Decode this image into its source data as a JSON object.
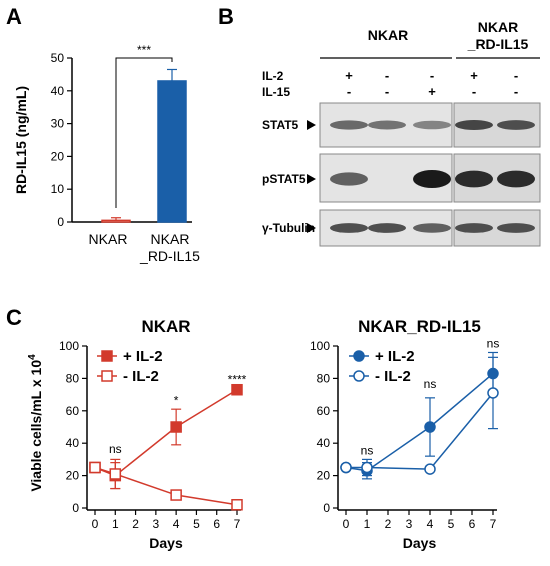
{
  "panels": {
    "a": {
      "letter": "A",
      "chart_data": {
        "type": "bar",
        "categories": [
          "NKAR",
          "NKAR\n_RD-IL15"
        ],
        "category_lines": [
          [
            "NKAR"
          ],
          [
            "NKAR",
            "_RD-IL15"
          ]
        ],
        "values": [
          0.5,
          43
        ],
        "errors": [
          0.8,
          3.5
        ],
        "ylabel": "RD-IL15  (ng/mL)",
        "ylim": [
          0,
          50
        ],
        "yticks": [
          0,
          10,
          20,
          30,
          40,
          50
        ],
        "significance": "***",
        "colors": {
          "bar2": "#1a5fa8",
          "bar1_edge": "#d23a2c"
        }
      }
    },
    "b": {
      "letter": "B",
      "groups": [
        {
          "label": "NKAR",
          "lanes": 3
        },
        {
          "label": "NKAR\n_RD-IL15",
          "lines": [
            "NKAR",
            "_RD-IL15"
          ],
          "lanes": 2
        }
      ],
      "conditions": [
        {
          "label": "IL-2",
          "values": [
            "+",
            "-",
            "-",
            "+",
            "-"
          ]
        },
        {
          "label": "IL-15",
          "values": [
            "-",
            "-",
            "+",
            "-",
            "-"
          ]
        }
      ],
      "blots": [
        {
          "label": "STAT5",
          "intensity": [
            0.55,
            0.5,
            0.4,
            0.75,
            0.7
          ]
        },
        {
          "label": "pSTAT5",
          "intensity": [
            0.6,
            0.0,
            1.0,
            0.9,
            0.9
          ]
        },
        {
          "label": "γ-Tubulin",
          "intensity": [
            0.7,
            0.7,
            0.6,
            0.7,
            0.7
          ]
        }
      ]
    },
    "c": {
      "letter": "C",
      "chart_data": [
        {
          "type": "line",
          "title": "NKAR",
          "xlabel": "Days",
          "ylabel": "Viable cells/mL x 10",
          "ylabel_sup": "4",
          "x": [
            0,
            1,
            4,
            7
          ],
          "xlim": [
            0,
            7
          ],
          "xticks": [
            0,
            1,
            2,
            3,
            4,
            5,
            6,
            7
          ],
          "ylim": [
            0,
            100
          ],
          "yticks": [
            0,
            20,
            40,
            60,
            80,
            100
          ],
          "color": "#d23a2c",
          "marker": "square",
          "series": [
            {
              "name": "+ IL-2",
              "filled": true,
              "values": [
                25,
                20,
                50,
                73
              ],
              "errors": [
                0,
                8,
                11,
                2
              ]
            },
            {
              "name": "- IL-2",
              "filled": false,
              "values": [
                25,
                21,
                8,
                2
              ],
              "errors": [
                0,
                9,
                0,
                0
              ]
            }
          ],
          "annotations": [
            {
              "x": 1,
              "y": 34,
              "text": "ns"
            },
            {
              "x": 4,
              "y": 64,
              "text": "*"
            },
            {
              "x": 7,
              "y": 77,
              "text": "****"
            }
          ]
        },
        {
          "type": "line",
          "title": "NKAR_RD-IL15",
          "xlabel": "Days",
          "ylabel": "",
          "x": [
            0,
            1,
            4,
            7
          ],
          "xlim": [
            0,
            7
          ],
          "xticks": [
            0,
            1,
            2,
            3,
            4,
            5,
            6,
            7
          ],
          "ylim": [
            0,
            100
          ],
          "yticks": [
            0,
            20,
            40,
            60,
            80,
            100
          ],
          "color": "#1a5fa8",
          "marker": "circle",
          "series": [
            {
              "name": "+ IL-2",
              "filled": true,
              "values": [
                25,
                23,
                50,
                83
              ],
              "errors": [
                0,
                5,
                18,
                13
              ]
            },
            {
              "name": "- IL-2",
              "filled": false,
              "values": [
                25,
                25,
                24,
                71
              ],
              "errors": [
                0,
                5,
                0,
                22
              ]
            }
          ],
          "annotations": [
            {
              "x": 1,
              "y": 33,
              "text": "ns"
            },
            {
              "x": 4,
              "y": 74,
              "text": "ns"
            },
            {
              "x": 7,
              "y": 99,
              "text": "ns"
            }
          ]
        }
      ]
    }
  }
}
